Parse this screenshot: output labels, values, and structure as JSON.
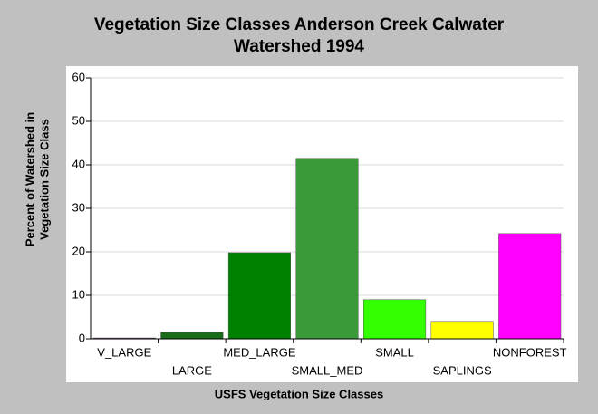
{
  "chart_data": {
    "type": "bar",
    "title": [
      "Vegetation Size Classes Anderson Creek Calwater",
      "Watershed 1994"
    ],
    "x_label": "USFS Vegetation Size Classes",
    "y_label": [
      "Percent of Watershed in",
      "Vegetation Size Class"
    ],
    "categories": [
      "V_LARGE",
      "LARGE",
      "MED_LARGE",
      "SMALL_MED",
      "SMALL",
      "SAPLINGS",
      "NONFOREST"
    ],
    "values": [
      0.2,
      1.5,
      19.8,
      41.5,
      9,
      4,
      24.2
    ],
    "colors": [
      "#800080",
      "#1a6b1a",
      "#008000",
      "#3a9a3a",
      "#33ff00",
      "#ffff00",
      "#ff00ff"
    ],
    "ylim": [
      0,
      60
    ],
    "yticks": [
      0,
      10,
      20,
      30,
      40,
      50,
      60
    ],
    "grid": true
  }
}
